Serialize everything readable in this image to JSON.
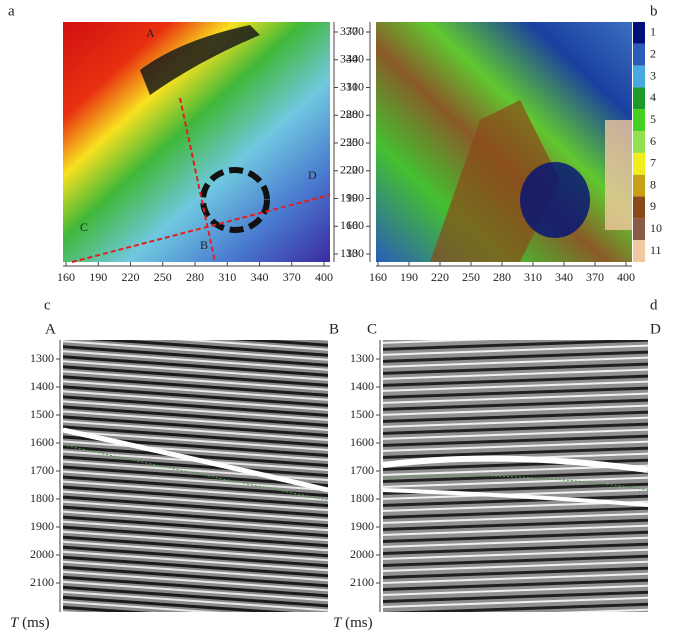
{
  "panels": {
    "a": {
      "label": "a",
      "points": [
        "A",
        "B",
        "C",
        "D"
      ],
      "xticks": [
        160,
        190,
        220,
        250,
        280,
        310,
        340,
        370,
        400
      ],
      "yticks": [
        370,
        340,
        310,
        280,
        250,
        220,
        190,
        160,
        130
      ]
    },
    "b": {
      "label": "b",
      "xticks": [
        160,
        190,
        220,
        250,
        280,
        310,
        340,
        370,
        400
      ],
      "yticks": [
        370,
        340,
        310,
        280,
        250,
        220,
        190,
        160,
        130
      ],
      "legend": [
        "1",
        "2",
        "3",
        "4",
        "5",
        "6",
        "7",
        "8",
        "9",
        "10",
        "11"
      ],
      "colors": [
        "#00107a",
        "#2a5cb8",
        "#4aa8e0",
        "#1e9a28",
        "#44d020",
        "#90e050",
        "#f2ee1e",
        "#c8a018",
        "#8a4a18",
        "#8a5a48",
        "#f2c8a0"
      ]
    },
    "c": {
      "label": "c",
      "left": "A",
      "right": "B",
      "yticks": [
        1300,
        1400,
        1500,
        1600,
        1700,
        1800,
        1900,
        2000,
        2100
      ],
      "axis_var": "T",
      "axis_unit": "(ms)"
    },
    "d": {
      "label": "d",
      "left": "C",
      "right": "D",
      "yticks": [
        1300,
        1400,
        1500,
        1600,
        1700,
        1800,
        1900,
        2000,
        2100
      ],
      "axis_var": "T",
      "axis_unit": "(ms)"
    }
  }
}
